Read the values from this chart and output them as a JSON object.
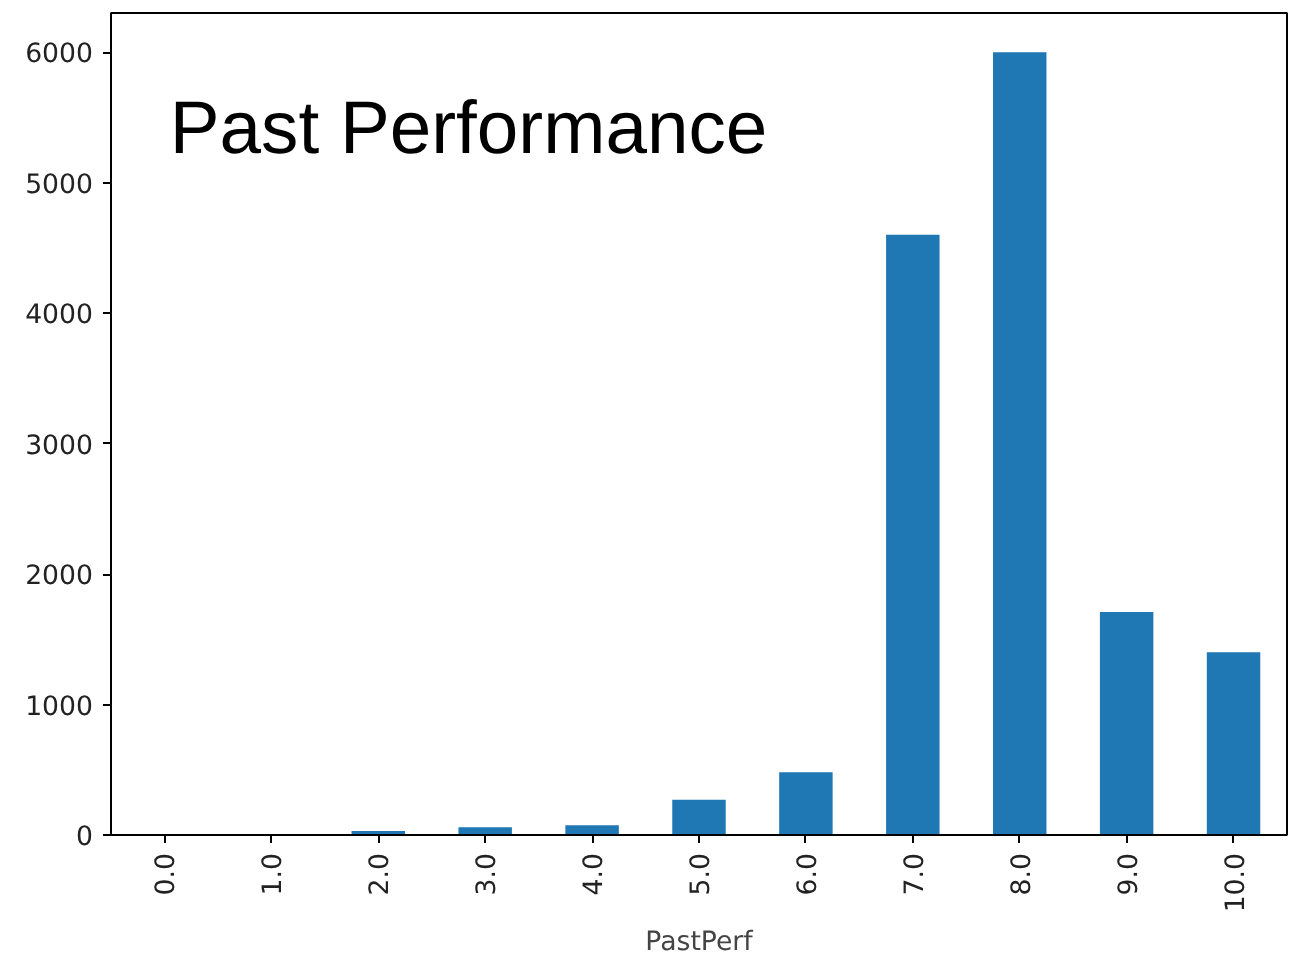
{
  "chart_data": {
    "type": "bar",
    "title": "Past Performance",
    "xlabel": "PastPerf",
    "categories": [
      "0.0",
      "1.0",
      "2.0",
      "3.0",
      "4.0",
      "5.0",
      "6.0",
      "7.0",
      "8.0",
      "9.0",
      "10.0"
    ],
    "values": [
      0,
      0,
      30,
      60,
      75,
      270,
      480,
      4600,
      6000,
      1710,
      1400
    ],
    "color": "#1f77b4",
    "ylim": [
      0,
      6300
    ],
    "yticks": [
      0,
      1000,
      2000,
      3000,
      4000,
      5000,
      6000
    ],
    "grid": false
  }
}
